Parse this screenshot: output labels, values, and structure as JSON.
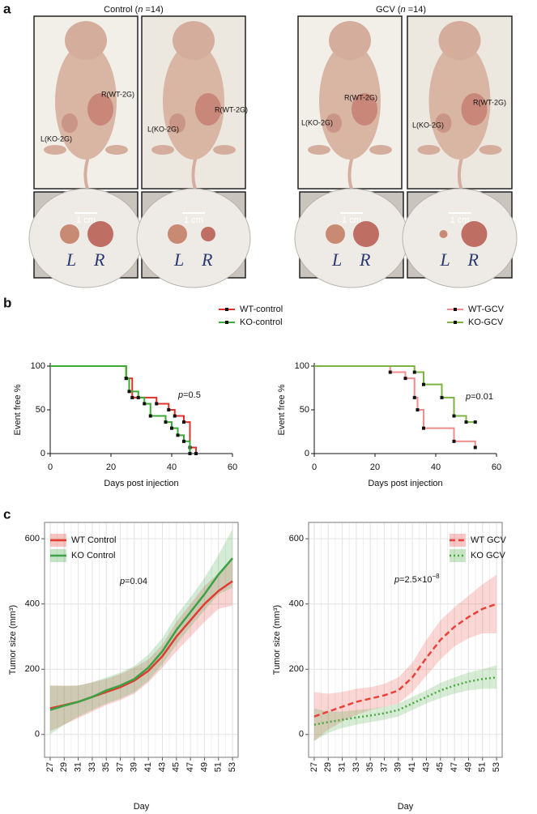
{
  "panel_labels": [
    "a",
    "b",
    "c"
  ],
  "panel_a": {
    "groups": [
      {
        "title": [
          "Control (",
          "n",
          " =14)"
        ],
        "photos": [
          {
            "right": "R(WT-2G)",
            "left": "L(KO-2G)"
          },
          {
            "right": "R(WT-2G)",
            "left": "L(KO-2G)"
          }
        ],
        "dishes": [
          {
            "scale": "1 cm",
            "left": "L",
            "right": "R"
          },
          {
            "scale": "1 cm",
            "left": "L",
            "right": "R"
          }
        ]
      },
      {
        "title": [
          "GCV (",
          "n",
          " =14)"
        ],
        "photos": [
          {
            "right": "R(WT-2G)",
            "left": "L(KO-2G)"
          },
          {
            "right": "R(WT-2G)",
            "left": "L(KO-2G)"
          }
        ],
        "dishes": [
          {
            "scale": "1 cm",
            "left": "L",
            "right": "R"
          },
          {
            "scale": "1 cm",
            "left": "L",
            "right": "R"
          }
        ]
      }
    ]
  },
  "chart_data": [
    {
      "type": "step",
      "xlabel": "Days post injection",
      "ylabel": "Event free %",
      "xlim": [
        0,
        60
      ],
      "xticks": [
        0,
        20,
        40,
        60
      ],
      "ylim": [
        0,
        100
      ],
      "yticks": [
        0,
        50,
        100
      ],
      "grid": false,
      "annotation": [
        "p",
        "=0.5"
      ],
      "legend": "top-right",
      "series": [
        {
          "name": "WT-control",
          "color": "#e0302a",
          "x": [
            0,
            25,
            27,
            35,
            39,
            41,
            44,
            46,
            48
          ],
          "values": [
            100,
            86,
            64,
            57,
            50,
            43,
            36,
            7,
            0
          ]
        },
        {
          "name": "KO-control",
          "color": "#3aaa35",
          "x": [
            0,
            25,
            26,
            29,
            31,
            33,
            38,
            40,
            42,
            44,
            46
          ],
          "values": [
            100,
            86,
            71,
            64,
            57,
            43,
            36,
            29,
            21,
            14,
            0
          ]
        }
      ]
    },
    {
      "type": "step",
      "xlabel": "Days post injection",
      "ylabel": "Event free %",
      "xlim": [
        0,
        60
      ],
      "xticks": [
        0,
        20,
        40,
        60
      ],
      "ylim": [
        0,
        100
      ],
      "yticks": [
        0,
        50,
        100
      ],
      "grid": false,
      "annotation": [
        "p",
        "=0.01"
      ],
      "legend": "top-right",
      "series": [
        {
          "name": "WT-GCV",
          "color": "#f28b8b",
          "x": [
            0,
            25,
            30,
            33,
            34,
            36,
            46,
            53
          ],
          "values": [
            100,
            93,
            86,
            64,
            50,
            29,
            14,
            7
          ]
        },
        {
          "name": "KO-GCV",
          "color": "#7cb342",
          "x": [
            0,
            33,
            36,
            42,
            46,
            50,
            53
          ],
          "values": [
            100,
            93,
            79,
            64,
            43,
            36,
            36
          ]
        }
      ]
    },
    {
      "type": "line",
      "xlabel": "Day",
      "ylabel": "Tumor size (mm³)",
      "xlim": [
        26.2,
        53.8
      ],
      "xticks": [
        27,
        29,
        31,
        33,
        35,
        37,
        39,
        41,
        43,
        45,
        47,
        49,
        51,
        53
      ],
      "ylim": [
        -70,
        650
      ],
      "yticks": [
        0,
        200,
        400,
        600
      ],
      "grid": true,
      "minor_grid": true,
      "annotation": [
        "p",
        "=0.04"
      ],
      "legend": "top-left",
      "series": [
        {
          "name": "WT Control",
          "color": "#e03c31",
          "dash": "solid",
          "x": [
            27,
            29,
            31,
            33,
            35,
            37,
            39,
            41,
            43,
            45,
            47,
            49,
            51,
            53
          ],
          "values": [
            80,
            90,
            100,
            115,
            130,
            145,
            165,
            195,
            240,
            300,
            350,
            400,
            440,
            470
          ],
          "lower": [
            10,
            30,
            50,
            70,
            90,
            105,
            125,
            160,
            205,
            255,
            300,
            345,
            385,
            395
          ],
          "upper": [
            150,
            150,
            150,
            160,
            170,
            185,
            205,
            230,
            275,
            345,
            400,
            455,
            495,
            545
          ]
        },
        {
          "name": "KO Control",
          "color": "#3aa345",
          "dash": "solid",
          "x": [
            27,
            29,
            31,
            33,
            35,
            37,
            39,
            41,
            43,
            45,
            47,
            49,
            51,
            53
          ],
          "values": [
            75,
            88,
            100,
            115,
            135,
            150,
            170,
            205,
            255,
            320,
            375,
            430,
            490,
            540
          ],
          "lower": [
            0,
            30,
            55,
            75,
            95,
            110,
            130,
            165,
            215,
            275,
            330,
            380,
            430,
            450
          ],
          "upper": [
            150,
            148,
            150,
            160,
            175,
            190,
            210,
            245,
            295,
            365,
            420,
            480,
            550,
            630
          ]
        }
      ]
    },
    {
      "type": "line",
      "xlabel": "Day",
      "ylabel": "Tumor size (mm³)",
      "xlim": [
        26.2,
        53.8
      ],
      "xticks": [
        27,
        29,
        31,
        33,
        35,
        37,
        39,
        41,
        43,
        45,
        47,
        49,
        51,
        53
      ],
      "ylim": [
        -70,
        650
      ],
      "yticks": [
        0,
        200,
        400,
        600
      ],
      "grid": true,
      "minor_grid": true,
      "annotation": [
        "p",
        "=2.5×10",
        "−8"
      ],
      "legend": "top-right",
      "series": [
        {
          "name": "WT GCV",
          "color": "#e8433a",
          "dash": "dashed",
          "x": [
            27,
            29,
            31,
            33,
            35,
            37,
            39,
            41,
            43,
            45,
            47,
            49,
            51,
            53
          ],
          "values": [
            55,
            70,
            85,
            100,
            110,
            120,
            135,
            175,
            235,
            290,
            330,
            360,
            385,
            400
          ],
          "lower": [
            -20,
            15,
            40,
            60,
            75,
            85,
            95,
            130,
            180,
            230,
            270,
            295,
            310,
            310
          ],
          "upper": [
            130,
            125,
            130,
            140,
            145,
            155,
            175,
            220,
            290,
            350,
            390,
            425,
            460,
            490
          ]
        },
        {
          "name": "KO GCV",
          "color": "#49a83f",
          "dash": "dotted",
          "x": [
            27,
            29,
            31,
            33,
            35,
            37,
            39,
            41,
            43,
            45,
            47,
            49,
            51,
            53
          ],
          "values": [
            30,
            38,
            45,
            52,
            58,
            65,
            75,
            95,
            115,
            135,
            150,
            162,
            170,
            175
          ],
          "lower": [
            -20,
            5,
            20,
            30,
            38,
            45,
            55,
            75,
            95,
            112,
            125,
            135,
            140,
            140
          ],
          "upper": [
            80,
            70,
            70,
            75,
            78,
            85,
            95,
            115,
            135,
            158,
            175,
            190,
            200,
            212
          ]
        }
      ]
    }
  ]
}
